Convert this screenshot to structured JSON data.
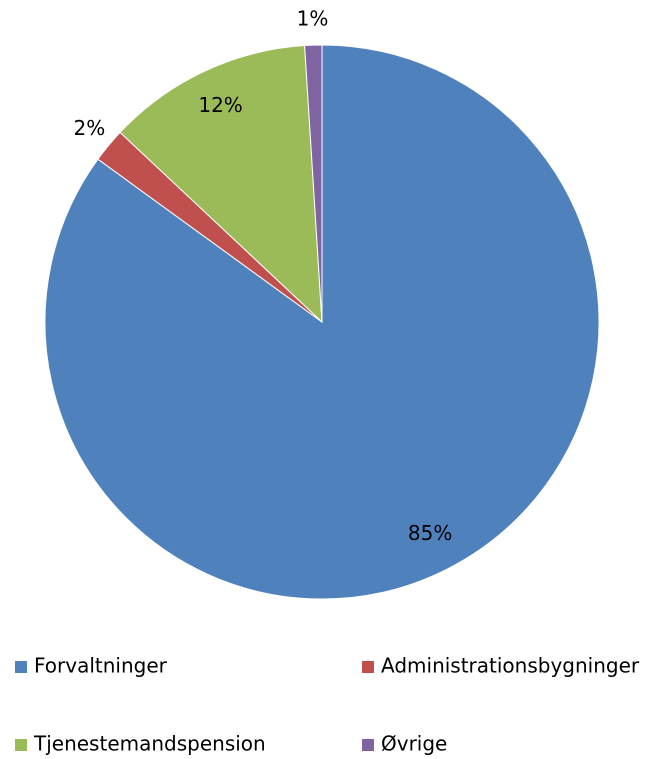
{
  "chart_data": {
    "type": "pie",
    "categories": [
      "Forvaltninger",
      "Administrationsbygninger",
      "Tjenestemandspension",
      "Øvrige"
    ],
    "values": [
      85,
      2,
      12,
      1
    ],
    "value_labels": [
      "85%",
      "2%",
      "12%",
      "1%"
    ],
    "colors": [
      "#4f81bd",
      "#c0504d",
      "#9bbb59",
      "#8064a2"
    ],
    "legend": "bottom"
  }
}
